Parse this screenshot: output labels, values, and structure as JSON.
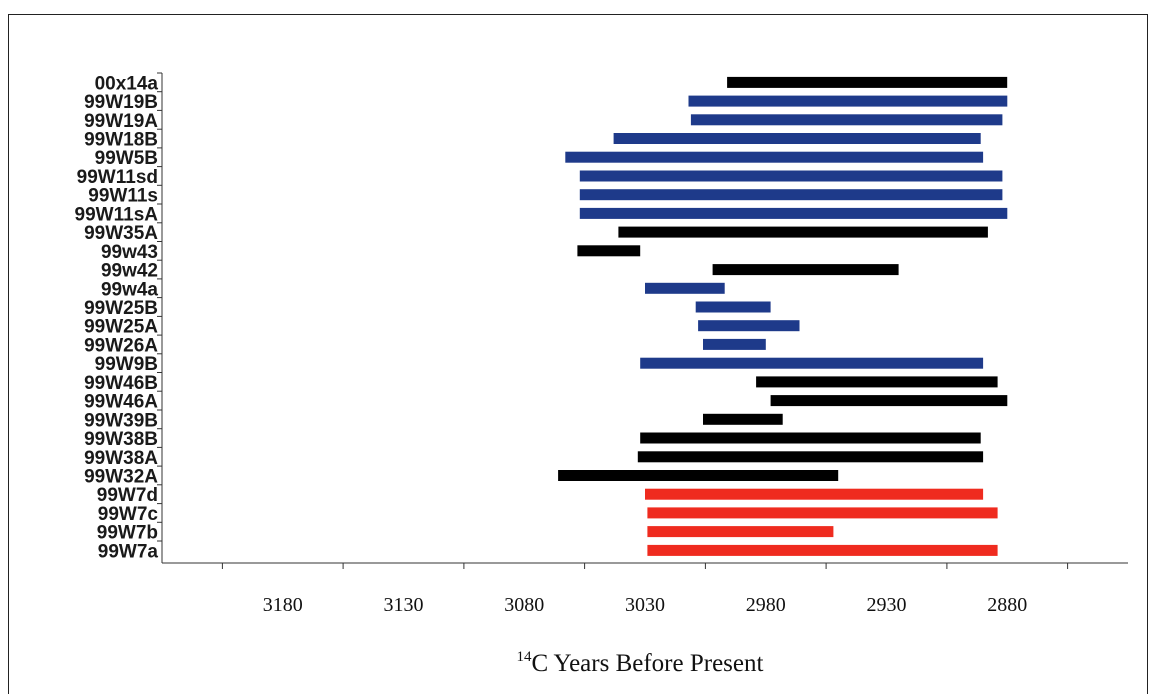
{
  "chart_data": {
    "type": "bar",
    "orientation": "horizontal",
    "title": "",
    "xlabel": {
      "superscript": "14",
      "text": "C Years Before Present"
    },
    "x_reversed": true,
    "xlim": [
      3230,
      2830
    ],
    "x_ticks": [
      3180,
      3130,
      3080,
      3030,
      2980,
      2930,
      2880
    ],
    "grid": false,
    "colors": {
      "black": "#000000",
      "blue": "#1e3a8a",
      "red": "#ef2b1f"
    },
    "series": [
      {
        "label": "00x14a",
        "start": 2996,
        "end": 2880,
        "color": "black"
      },
      {
        "label": "99W19B",
        "start": 3012,
        "end": 2880,
        "color": "blue"
      },
      {
        "label": "99W19A",
        "start": 3011,
        "end": 2882,
        "color": "blue"
      },
      {
        "label": "99W18B",
        "start": 3043,
        "end": 2891,
        "color": "blue"
      },
      {
        "label": "99W5B",
        "start": 3063,
        "end": 2890,
        "color": "blue"
      },
      {
        "label": "99W11sd",
        "start": 3057,
        "end": 2882,
        "color": "blue"
      },
      {
        "label": "99W11s",
        "start": 3057,
        "end": 2882,
        "color": "blue"
      },
      {
        "label": "99W11sA",
        "start": 3057,
        "end": 2880,
        "color": "blue"
      },
      {
        "label": "99W35A",
        "start": 3041,
        "end": 2888,
        "color": "black"
      },
      {
        "label": "99w43",
        "start": 3058,
        "end": 3032,
        "color": "black"
      },
      {
        "label": "99w42",
        "start": 3002,
        "end": 2925,
        "color": "black"
      },
      {
        "label": "99w4a",
        "start": 3030,
        "end": 2997,
        "color": "blue"
      },
      {
        "label": "99W25B",
        "start": 3009,
        "end": 2978,
        "color": "blue"
      },
      {
        "label": "99W25A",
        "start": 3008,
        "end": 2966,
        "color": "blue"
      },
      {
        "label": "99W26A",
        "start": 3006,
        "end": 2980,
        "color": "blue"
      },
      {
        "label": "99W9B",
        "start": 3032,
        "end": 2890,
        "color": "blue"
      },
      {
        "label": "99W46B",
        "start": 2984,
        "end": 2884,
        "color": "black"
      },
      {
        "label": "99W46A",
        "start": 2978,
        "end": 2880,
        "color": "black"
      },
      {
        "label": "99W39B",
        "start": 3006,
        "end": 2973,
        "color": "black"
      },
      {
        "label": "99W38B",
        "start": 3032,
        "end": 2891,
        "color": "black"
      },
      {
        "label": "99W38A",
        "start": 3033,
        "end": 2890,
        "color": "black"
      },
      {
        "label": "99W32A",
        "start": 3066,
        "end": 2950,
        "color": "black"
      },
      {
        "label": "99W7d",
        "start": 3030,
        "end": 2890,
        "color": "red"
      },
      {
        "label": "99W7c",
        "start": 3029,
        "end": 2884,
        "color": "red"
      },
      {
        "label": "99W7b",
        "start": 3029,
        "end": 2952,
        "color": "red"
      },
      {
        "label": "99W7a",
        "start": 3029,
        "end": 2884,
        "color": "red"
      }
    ]
  }
}
